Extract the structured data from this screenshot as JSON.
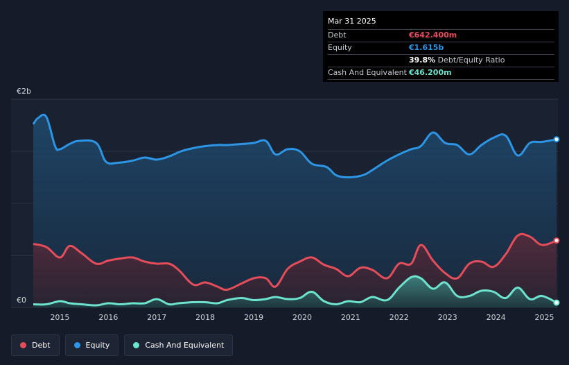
{
  "colors": {
    "debt": "#e64d5b",
    "equity": "#2d95e6",
    "cash": "#6de3cd",
    "background": "#151b28",
    "grid": "#2f3644"
  },
  "tooltip": {
    "date": "Mar 31 2025",
    "rows": {
      "debt": {
        "label": "Debt",
        "value": "€642.400m"
      },
      "equity": {
        "label": "Equity",
        "value": "€1.615b"
      },
      "ratio": {
        "value": "39.8%",
        "label": "Debt/Equity Ratio"
      },
      "cash": {
        "label": "Cash And Equivalent",
        "value": "€46.200m"
      }
    }
  },
  "legend": {
    "debt": "Debt",
    "equity": "Equity",
    "cash": "Cash And Equivalent"
  },
  "chart_data": {
    "type": "area",
    "y_tick_labels": {
      "top": "€2b",
      "bottom": "€0"
    },
    "ylim": [
      0,
      2.0
    ],
    "xlim": [
      2014.45,
      2025.25
    ],
    "x_ticks": [
      "2015",
      "2016",
      "2017",
      "2018",
      "2019",
      "2020",
      "2021",
      "2022",
      "2023",
      "2024",
      "2025"
    ],
    "grid": true,
    "legend_position": "bottom-left",
    "series": [
      {
        "name": "Equity",
        "key": "equity",
        "x": [
          2014.45,
          2014.55,
          2014.72,
          2014.9,
          2015.0,
          2015.2,
          2015.4,
          2015.75,
          2015.95,
          2016.2,
          2016.5,
          2016.75,
          2017.0,
          2017.25,
          2017.5,
          2017.75,
          2018.0,
          2018.25,
          2018.45,
          2018.75,
          2019.0,
          2019.25,
          2019.45,
          2019.7,
          2019.95,
          2020.2,
          2020.5,
          2020.7,
          2020.95,
          2021.25,
          2021.45,
          2021.75,
          2022.0,
          2022.25,
          2022.45,
          2022.7,
          2022.95,
          2023.2,
          2023.45,
          2023.7,
          2023.95,
          2024.2,
          2024.45,
          2024.7,
          2024.95,
          2025.25
        ],
        "y": [
          1.76,
          1.82,
          1.83,
          1.55,
          1.52,
          1.57,
          1.6,
          1.58,
          1.4,
          1.39,
          1.41,
          1.44,
          1.42,
          1.45,
          1.5,
          1.53,
          1.55,
          1.56,
          1.56,
          1.57,
          1.58,
          1.6,
          1.47,
          1.52,
          1.5,
          1.38,
          1.35,
          1.27,
          1.25,
          1.27,
          1.32,
          1.41,
          1.47,
          1.52,
          1.55,
          1.68,
          1.58,
          1.56,
          1.47,
          1.56,
          1.63,
          1.65,
          1.46,
          1.58,
          1.59,
          1.615
        ]
      },
      {
        "name": "Debt",
        "key": "debt",
        "x": [
          2014.45,
          2014.72,
          2015.0,
          2015.2,
          2015.45,
          2015.75,
          2016.0,
          2016.25,
          2016.5,
          2016.75,
          2017.0,
          2017.25,
          2017.45,
          2017.75,
          2018.0,
          2018.25,
          2018.45,
          2018.75,
          2019.0,
          2019.25,
          2019.45,
          2019.7,
          2019.95,
          2020.2,
          2020.45,
          2020.7,
          2020.95,
          2021.2,
          2021.45,
          2021.75,
          2022.0,
          2022.25,
          2022.45,
          2022.7,
          2022.95,
          2023.2,
          2023.45,
          2023.7,
          2023.95,
          2024.2,
          2024.45,
          2024.7,
          2024.95,
          2025.25
        ],
        "y": [
          0.61,
          0.58,
          0.48,
          0.59,
          0.52,
          0.42,
          0.45,
          0.47,
          0.48,
          0.44,
          0.42,
          0.42,
          0.36,
          0.22,
          0.24,
          0.2,
          0.17,
          0.23,
          0.28,
          0.28,
          0.2,
          0.37,
          0.44,
          0.48,
          0.41,
          0.37,
          0.3,
          0.38,
          0.36,
          0.28,
          0.42,
          0.42,
          0.6,
          0.45,
          0.33,
          0.28,
          0.42,
          0.44,
          0.39,
          0.51,
          0.69,
          0.68,
          0.6,
          0.6424
        ]
      },
      {
        "name": "Cash And Equivalent",
        "key": "cash",
        "x": [
          2014.45,
          2014.72,
          2015.0,
          2015.2,
          2015.45,
          2015.75,
          2016.0,
          2016.25,
          2016.5,
          2016.75,
          2017.0,
          2017.25,
          2017.45,
          2017.75,
          2018.0,
          2018.25,
          2018.45,
          2018.75,
          2019.0,
          2019.25,
          2019.45,
          2019.7,
          2019.95,
          2020.2,
          2020.45,
          2020.7,
          2020.95,
          2021.2,
          2021.45,
          2021.75,
          2022.0,
          2022.25,
          2022.45,
          2022.7,
          2022.95,
          2023.2,
          2023.45,
          2023.7,
          2023.95,
          2024.2,
          2024.45,
          2024.7,
          2024.95,
          2025.25
        ],
        "y": [
          0.03,
          0.03,
          0.06,
          0.04,
          0.03,
          0.02,
          0.04,
          0.03,
          0.04,
          0.04,
          0.08,
          0.03,
          0.04,
          0.05,
          0.05,
          0.04,
          0.07,
          0.09,
          0.07,
          0.08,
          0.1,
          0.08,
          0.09,
          0.15,
          0.06,
          0.03,
          0.06,
          0.05,
          0.1,
          0.07,
          0.19,
          0.29,
          0.28,
          0.18,
          0.24,
          0.11,
          0.11,
          0.16,
          0.15,
          0.09,
          0.19,
          0.08,
          0.11,
          0.0462
        ]
      }
    ]
  }
}
